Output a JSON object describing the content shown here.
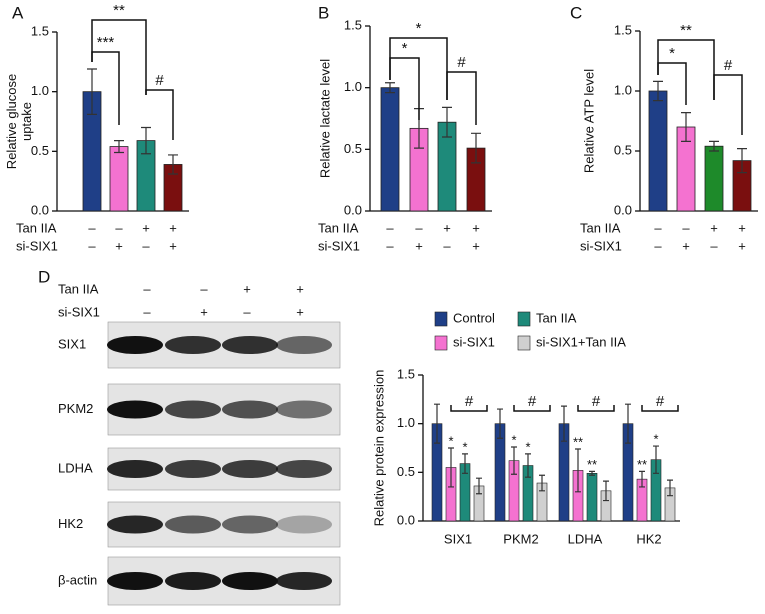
{
  "chart_data": [
    {
      "type": "bar",
      "panel_label": "A",
      "y_label": [
        "Relative glucose",
        "uptake"
      ],
      "categories": [
        null,
        null,
        null,
        null
      ],
      "values": [
        1.0,
        0.54,
        0.59,
        0.39
      ],
      "errors": [
        0.19,
        0.05,
        0.11,
        0.08
      ],
      "colors": [
        "#1f3f87",
        "#f472d0",
        "#1e8a7a",
        "#7a0f0f"
      ],
      "ylim": [
        0,
        1.5
      ],
      "yticks": [
        {
          "value": 0,
          "label": "0.0"
        },
        0.5,
        {
          "value": 1,
          "label": "1.0"
        },
        1.5
      ],
      "annotations": [
        "**",
        "***",
        "#"
      ],
      "conditions": [
        {
          "name": "Tan IIA",
          "signs": [
            "–",
            "–",
            "+",
            "+"
          ]
        },
        {
          "name": "si-SIX1",
          "signs": [
            "–",
            "+",
            "–",
            "+"
          ]
        }
      ]
    },
    {
      "type": "bar",
      "panel_label": "B",
      "y_label": [
        "Relative lactate level"
      ],
      "categories": [
        null,
        null,
        null,
        null
      ],
      "values": [
        1.0,
        0.67,
        0.72,
        0.51
      ],
      "errors": [
        0.04,
        0.16,
        0.12,
        0.12
      ],
      "colors": [
        "#1f3f87",
        "#f472d0",
        "#1e8a7a",
        "#7a0f0f"
      ],
      "ylim": [
        0,
        1.5
      ],
      "yticks": [
        {
          "value": 0,
          "label": "0.0"
        },
        0.5,
        {
          "value": 1,
          "label": "1.0"
        },
        1.5
      ],
      "annotations": [
        "*",
        "*",
        "#"
      ],
      "conditions": [
        {
          "name": "Tan IIA",
          "signs": [
            "–",
            "–",
            "+",
            "+"
          ]
        },
        {
          "name": "si-SIX1",
          "signs": [
            "–",
            "+",
            "–",
            "+"
          ]
        }
      ]
    },
    {
      "type": "bar",
      "panel_label": "C",
      "y_label": [
        "Relative ATP level"
      ],
      "categories": [
        null,
        null,
        null,
        null
      ],
      "values": [
        1.0,
        0.7,
        0.54,
        0.42
      ],
      "errors": [
        0.08,
        0.12,
        0.04,
        0.1
      ],
      "colors": [
        "#1f3f87",
        "#f472d0",
        "#1e8a2a",
        "#7a0f0f"
      ],
      "ylim": [
        0,
        1.5
      ],
      "yticks": [
        {
          "value": 0,
          "label": "0.0"
        },
        0.5,
        {
          "value": 1,
          "label": "1.0"
        },
        1.5
      ],
      "annotations": [
        "**",
        "*",
        "#"
      ],
      "conditions": [
        {
          "name": "Tan IIA",
          "signs": [
            "–",
            "–",
            "+",
            "+"
          ]
        },
        {
          "name": "si-SIX1",
          "signs": [
            "–",
            "+",
            "–",
            "+"
          ]
        }
      ]
    },
    {
      "type": "grouped-bar",
      "y_label": [
        "Relative protein expression"
      ],
      "categories": [
        "SIX1",
        "PKM2",
        "LDHA",
        "HK2"
      ],
      "series": [
        {
          "name": "Control",
          "color": "#1f3f87",
          "values": [
            1.0,
            1.0,
            1.0,
            1.0
          ],
          "errors": [
            0.2,
            0.15,
            0.18,
            0.2
          ]
        },
        {
          "name": "si-SIX1",
          "color": "#f472d0",
          "values": [
            0.55,
            0.62,
            0.52,
            0.43
          ],
          "errors": [
            0.2,
            0.14,
            0.22,
            0.08
          ]
        },
        {
          "name": "Tan IIA",
          "color": "#1e8a7a",
          "values": [
            0.59,
            0.57,
            0.49,
            0.63
          ],
          "errors": [
            0.1,
            0.12,
            0.02,
            0.14
          ]
        },
        {
          "name": "si-SIX1+Tan IIA",
          "color": "#d0d0d0",
          "values": [
            0.36,
            0.39,
            0.31,
            0.34
          ],
          "errors": [
            0.08,
            0.08,
            0.1,
            0.08
          ]
        }
      ],
      "ylim": [
        0,
        1.5
      ],
      "yticks": [
        {
          "value": 0,
          "label": "0.0"
        },
        0.5,
        {
          "value": 1,
          "label": "1.0"
        },
        1.5
      ],
      "annotations": [
        [
          "*",
          "*",
          "#"
        ],
        [
          "*",
          "*",
          "#"
        ],
        [
          "**",
          "**",
          "#"
        ],
        [
          "**",
          "*",
          "#"
        ]
      ],
      "legend": "top"
    }
  ],
  "blot": {
    "panel_label": "D",
    "conditions": [
      {
        "name": "Tan IIA",
        "signs": [
          "–",
          "–",
          "+",
          "+"
        ]
      },
      {
        "name": "si-SIX1",
        "signs": [
          "–",
          "+",
          "–",
          "+"
        ]
      }
    ],
    "rows": [
      "SIX1",
      "PKM2",
      "LDHA",
      "HK2",
      "β-actin"
    ]
  }
}
